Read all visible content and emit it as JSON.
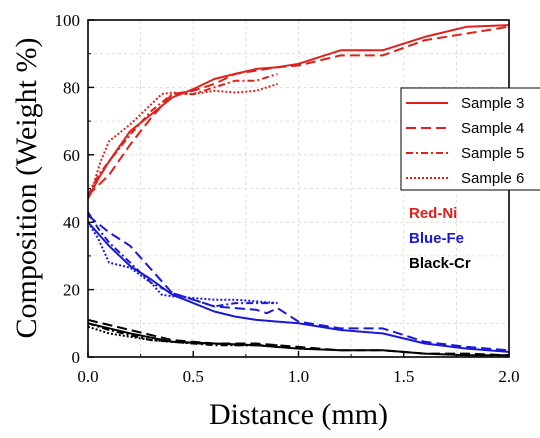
{
  "chart_data": {
    "type": "line",
    "xlabel": "Distance (mm)",
    "ylabel": "Composition (Weight %)",
    "xlim": [
      0,
      2.0
    ],
    "ylim": [
      0,
      100
    ],
    "xticks": [
      "0.0",
      "0.5",
      "1.0",
      "1.5",
      "2.0"
    ],
    "yticks": [
      "0",
      "20",
      "40",
      "60",
      "80",
      "100"
    ],
    "grid": true,
    "legend_position": "right",
    "legend": [
      {
        "label": "Sample 3",
        "style": "solid"
      },
      {
        "label": "Sample 4",
        "style": "dashed"
      },
      {
        "label": "Sample 5",
        "style": "dashdot"
      },
      {
        "label": "Sample 6",
        "style": "dotted"
      }
    ],
    "annotations": [
      {
        "text": "Red-Ni",
        "color": "#e0201b"
      },
      {
        "text": "Blue-Fe",
        "color": "#1a1ad6"
      },
      {
        "text": "Black-Cr",
        "color": "#000000"
      }
    ],
    "series": [
      {
        "element": "Ni",
        "sample": "Sample 3",
        "color": "#e0201b",
        "style": "solid",
        "x": [
          0,
          0.05,
          0.1,
          0.2,
          0.3,
          0.4,
          0.5,
          0.6,
          0.7,
          0.8,
          0.9,
          1.0,
          1.2,
          1.4,
          1.6,
          1.8,
          2.0
        ],
        "y": [
          47,
          53,
          58,
          67,
          72,
          77,
          79.5,
          82.5,
          84,
          85.5,
          86,
          87,
          91,
          91,
          95,
          98,
          98.5
        ]
      },
      {
        "element": "Ni",
        "sample": "Sample 4",
        "color": "#e0201b",
        "style": "dashed",
        "x": [
          0,
          0.05,
          0.1,
          0.2,
          0.3,
          0.4,
          0.5,
          0.6,
          0.7,
          0.8,
          0.9,
          1.0,
          1.2,
          1.4,
          1.6,
          1.8,
          2.0
        ],
        "y": [
          48,
          51,
          54,
          63,
          71,
          78,
          79,
          81,
          84,
          85,
          86,
          86.5,
          89.5,
          89.5,
          94,
          96,
          98
        ]
      },
      {
        "element": "Ni",
        "sample": "Sample 5",
        "color": "#e0201b",
        "style": "dashdot",
        "x": [
          0,
          0.05,
          0.1,
          0.2,
          0.3,
          0.4,
          0.5,
          0.6,
          0.7,
          0.8,
          0.9
        ],
        "y": [
          48,
          54,
          58,
          66,
          73,
          78,
          78,
          80,
          82,
          82,
          84
        ]
      },
      {
        "element": "Ni",
        "sample": "Sample 6",
        "color": "#e0201b",
        "style": "dotted",
        "x": [
          0,
          0.03,
          0.06,
          0.1,
          0.2,
          0.3,
          0.35,
          0.4,
          0.5,
          0.6,
          0.7,
          0.8,
          0.9
        ],
        "y": [
          47,
          52,
          58,
          64,
          69,
          75,
          78,
          78.5,
          78,
          79,
          78.5,
          79,
          81
        ]
      },
      {
        "element": "Fe",
        "sample": "Sample 3",
        "color": "#1a1ad6",
        "style": "solid",
        "x": [
          0,
          0.1,
          0.2,
          0.3,
          0.4,
          0.5,
          0.6,
          0.7,
          0.8,
          0.9,
          1.0,
          1.2,
          1.4,
          1.6,
          1.8,
          2.0
        ],
        "y": [
          40,
          33,
          27,
          23,
          18.5,
          16,
          13.5,
          12,
          11,
          10.5,
          10,
          8,
          7,
          4,
          2.5,
          1.5
        ]
      },
      {
        "element": "Fe",
        "sample": "Sample 4",
        "color": "#1a1ad6",
        "style": "dashed",
        "x": [
          0,
          0.1,
          0.2,
          0.3,
          0.4,
          0.5,
          0.6,
          0.7,
          0.8,
          0.85,
          0.9,
          1.0,
          1.2,
          1.4,
          1.6,
          1.8,
          2.0
        ],
        "y": [
          42,
          37,
          33,
          26,
          19,
          17,
          15,
          14.5,
          14,
          13,
          14.5,
          10.5,
          8.5,
          8.5,
          4.5,
          3,
          2
        ]
      },
      {
        "element": "Fe",
        "sample": "Sample 5",
        "color": "#1a1ad6",
        "style": "dashdot",
        "x": [
          0,
          0.05,
          0.1,
          0.2,
          0.3,
          0.4,
          0.5,
          0.6,
          0.7,
          0.8,
          0.9
        ],
        "y": [
          43,
          38,
          34,
          28,
          22,
          19,
          17,
          15,
          16,
          16,
          16
        ]
      },
      {
        "element": "Fe",
        "sample": "Sample 6",
        "color": "#1a1ad6",
        "style": "dotted",
        "x": [
          0,
          0.05,
          0.1,
          0.2,
          0.3,
          0.35,
          0.4,
          0.5,
          0.6,
          0.7,
          0.8,
          0.9
        ],
        "y": [
          40,
          35,
          28,
          26.5,
          22,
          18.5,
          18,
          17.5,
          17,
          17,
          16.5,
          16
        ]
      },
      {
        "element": "Cr",
        "sample": "Sample 3",
        "color": "#000000",
        "style": "solid",
        "x": [
          0,
          0.2,
          0.4,
          0.6,
          0.8,
          1.0,
          1.2,
          1.4,
          1.6,
          1.8,
          2.0
        ],
        "y": [
          10,
          7,
          4.5,
          4,
          3.5,
          2.5,
          2,
          2,
          1,
          0.5,
          0.5
        ]
      },
      {
        "element": "Cr",
        "sample": "Sample 4",
        "color": "#000000",
        "style": "dashed",
        "x": [
          0,
          0.2,
          0.4,
          0.6,
          0.8,
          1.0,
          1.2,
          1.4,
          1.6,
          1.8,
          2.0
        ],
        "y": [
          11,
          8,
          5,
          4,
          4,
          3,
          2,
          2,
          1,
          1,
          0.5
        ]
      },
      {
        "element": "Cr",
        "sample": "Sample 5",
        "color": "#000000",
        "style": "dashdot",
        "x": [
          0,
          0.1,
          0.2,
          0.3,
          0.4,
          0.5,
          0.6,
          0.7,
          0.8,
          0.9
        ],
        "y": [
          10,
          8,
          6.5,
          5,
          4.5,
          4,
          3.5,
          3.5,
          3.5,
          3.5
        ]
      },
      {
        "element": "Cr",
        "sample": "Sample 6",
        "color": "#000000",
        "style": "dotted",
        "x": [
          0,
          0.1,
          0.2,
          0.3,
          0.4,
          0.5,
          0.6,
          0.7,
          0.8,
          0.9
        ],
        "y": [
          9,
          7,
          6,
          5,
          4.5,
          4,
          4,
          3.5,
          3.5,
          3
        ]
      }
    ]
  }
}
